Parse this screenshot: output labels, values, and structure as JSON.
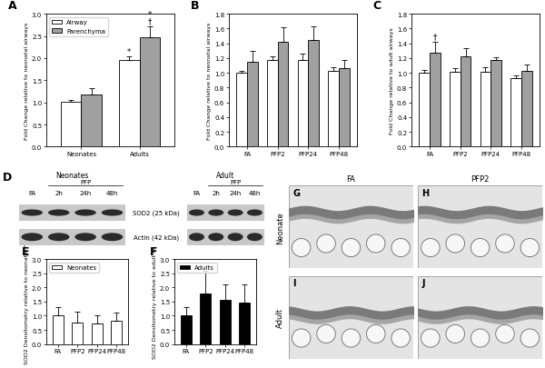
{
  "chart_data": [
    {
      "type": "bar",
      "title": "A",
      "y_label": "Fold Change relative to neonatal airways",
      "categories": [
        "Neonates",
        "Adults"
      ],
      "series": [
        {
          "name": "Airway",
          "color": "#ffffff",
          "values": [
            1.02,
            1.95
          ],
          "errors": [
            0.03,
            0.08
          ]
        },
        {
          "name": "Parenchyma",
          "color": "#a0a0a0",
          "values": [
            1.17,
            2.47
          ],
          "errors": [
            0.15,
            0.25
          ]
        }
      ],
      "annotations": [
        {
          "category": "Adults",
          "series": 0,
          "text": [
            "*"
          ]
        },
        {
          "category": "Adults",
          "series": 1,
          "text": [
            "*",
            "†"
          ]
        }
      ],
      "ylim": [
        0.0,
        3.0
      ],
      "yticks": [
        {
          "value": 0.0,
          "label": "0.0"
        },
        {
          "value": 0.5,
          "label": "0.5"
        },
        {
          "value": 1.0,
          "label": "1.0"
        },
        {
          "value": 1.5,
          "label": "1.5"
        },
        {
          "value": 2.0,
          "label": "2.0"
        },
        {
          "value": 2.5,
          "label": "2.5"
        },
        {
          "value": 3.0,
          "label": "3.0"
        }
      ],
      "legend": "upper left"
    },
    {
      "type": "bar",
      "title": "B",
      "y_label": "Fold Change relative to neonatal airways",
      "categories": [
        "FA",
        "PFP2",
        "PFP24",
        "PFP48"
      ],
      "series": [
        {
          "color": "#ffffff",
          "values": [
            1.0,
            1.18,
            1.18,
            1.03
          ],
          "errors": [
            0.03,
            0.05,
            0.08,
            0.05
          ]
        },
        {
          "color": "#a0a0a0",
          "values": [
            1.15,
            1.42,
            1.45,
            1.07
          ],
          "errors": [
            0.15,
            0.2,
            0.18,
            0.1
          ]
        }
      ],
      "ylim": [
        0.0,
        1.8
      ],
      "yticks": [
        {
          "value": 0.0,
          "label": "0.0"
        },
        {
          "value": 0.2,
          "label": "0.2"
        },
        {
          "value": 0.4,
          "label": "0.4"
        },
        {
          "value": 0.6,
          "label": "0.6"
        },
        {
          "value": 0.8,
          "label": "0.8"
        },
        {
          "value": 1.0,
          "label": "1.0"
        },
        {
          "value": 1.2,
          "label": "1.2"
        },
        {
          "value": 1.4,
          "label": "1.4"
        },
        {
          "value": 1.6,
          "label": "1.6"
        },
        {
          "value": 1.8,
          "label": "1.8"
        }
      ]
    },
    {
      "type": "bar",
      "title": "C",
      "y_label": "Fold Change relative to adult airways",
      "categories": [
        "FA",
        "PFP2",
        "PFP24",
        "PFP48"
      ],
      "series": [
        {
          "color": "#ffffff",
          "values": [
            1.0,
            1.02,
            1.02,
            0.93
          ],
          "errors": [
            0.04,
            0.05,
            0.06,
            0.03
          ]
        },
        {
          "color": "#a0a0a0",
          "values": [
            1.27,
            1.23,
            1.17,
            1.03
          ],
          "errors": [
            0.15,
            0.1,
            0.04,
            0.08
          ]
        }
      ],
      "annotations": [
        {
          "category": "FA",
          "series": 1,
          "text": [
            "†"
          ]
        }
      ],
      "ylim": [
        0.0,
        1.8
      ],
      "yticks": [
        {
          "value": 0.0,
          "label": "0.0"
        },
        {
          "value": 0.2,
          "label": "0.2"
        },
        {
          "value": 0.4,
          "label": "0.4"
        },
        {
          "value": 0.6,
          "label": "0.6"
        },
        {
          "value": 0.8,
          "label": "0.8"
        },
        {
          "value": 1.0,
          "label": "1.0"
        },
        {
          "value": 1.2,
          "label": "1.2"
        },
        {
          "value": 1.4,
          "label": "1.4"
        },
        {
          "value": 1.6,
          "label": "1.6"
        },
        {
          "value": 1.8,
          "label": "1.8"
        }
      ]
    },
    {
      "type": "bar",
      "title": "E",
      "y_label": "SOD2 Densitometry relative to neonatal FA",
      "categories": [
        "FA",
        "PFP2",
        "PFP24",
        "PFP48"
      ],
      "series": [
        {
          "name": "Neonates",
          "color": "#ffffff",
          "values": [
            1.0,
            0.75,
            0.73,
            0.82
          ],
          "errors": [
            0.3,
            0.38,
            0.28,
            0.3
          ]
        }
      ],
      "ylim": [
        0.0,
        3.0
      ],
      "yticks": [
        {
          "value": 0.0,
          "label": "0.0"
        },
        {
          "value": 0.5,
          "label": "0.5"
        },
        {
          "value": 1.0,
          "label": "1.0"
        },
        {
          "value": 1.5,
          "label": "1.5"
        },
        {
          "value": 2.0,
          "label": "2.0"
        },
        {
          "value": 2.5,
          "label": "2.5"
        },
        {
          "value": 3.0,
          "label": "3.0"
        }
      ],
      "legend": "upper left"
    },
    {
      "type": "bar",
      "title": "F",
      "y_label": "SOD2 Densitometry relative to adult FA",
      "categories": [
        "FA",
        "PFP2",
        "PFP24",
        "PFP48"
      ],
      "series": [
        {
          "name": "Adults",
          "color": "#000000",
          "values": [
            1.0,
            1.8,
            1.57,
            1.45
          ],
          "errors": [
            0.3,
            0.78,
            0.55,
            0.65
          ]
        }
      ],
      "ylim": [
        0.0,
        3.0
      ],
      "yticks": [
        {
          "value": 0.0,
          "label": "0.0"
        },
        {
          "value": 0.5,
          "label": "0.5"
        },
        {
          "value": 1.0,
          "label": "1.0"
        },
        {
          "value": 1.5,
          "label": "1.5"
        },
        {
          "value": 2.0,
          "label": "2.0"
        },
        {
          "value": 2.5,
          "label": "2.5"
        },
        {
          "value": 3.0,
          "label": "3.0"
        }
      ],
      "legend": "upper left"
    }
  ],
  "blot": {
    "label": "D",
    "treatment": "PFP",
    "groups": [
      {
        "name": "Neonates",
        "lanes": [
          "FA",
          "2h",
          "24h",
          "48h"
        ]
      },
      {
        "name": "Adult",
        "lanes": [
          "FA",
          "2h",
          "24h",
          "48h"
        ]
      }
    ],
    "rows": [
      "SOD2 (25 kDa)",
      "Actin (42 kDa)"
    ]
  },
  "micrographs": {
    "labels": [
      "G",
      "H",
      "I",
      "J"
    ],
    "columns": [
      "FA",
      "PFP2"
    ],
    "rows": [
      "Neonate",
      "Adult"
    ]
  }
}
